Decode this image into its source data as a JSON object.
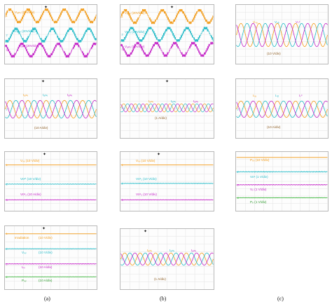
{
  "colors": {
    "orange": "#f29a16",
    "cyan": "#1fb9c6",
    "magenta": "#c21fc5",
    "green": "#3bb53b",
    "grid": "#e3e3e3"
  },
  "captions": {
    "a": "(a)",
    "b": "(b)",
    "c": "(c)"
  },
  "trigger_icon": "diamond-trigger-icon",
  "panels": {
    "a1": {
      "labels": [
        "Vₐᵢₙᵥ (20V/div)",
        "Vₐᵢₙᵥ (20V/div)",
        "Vₐᵢₙᵥ (20V/div)"
      ]
    },
    "b1": {
      "labels": [
        "Vₐᵢₙᵥ (20V/div)",
        "Vₐᵢₙᵥ (20V/div)",
        "Vₐᵢₙᵥ (20V/div)"
      ]
    },
    "c1": {
      "labels": [
        "Vₛₐ",
        "Vₛᵦ",
        "Vₛᶜ",
        "(10 V/div)"
      ]
    },
    "a2": {
      "labels": [
        "Iₐᵢₙᵥ",
        "Iₐᵢₙᵥ",
        "Iₐᵢₙᵥ",
        "(10 A/div)"
      ]
    },
    "b2": {
      "labels": [
        "Iₐᵢₙᵥ",
        "Iₐᵢₙᵥ",
        "Iₐᵢₙᵥ",
        "(1 A/div)"
      ]
    },
    "c2": {
      "labels": [
        "Iₛₐ",
        "Iₛᵦ",
        "Iₛᶜ",
        "(10 A/div)"
      ]
    },
    "a3": {
      "labels": [
        "Vₚᵥ (10 V/div)",
        "Vᴅᶜᵗ (10 V/div)",
        "Vᴅᶜ₂ (10 A/div)"
      ]
    },
    "b3": {
      "labels": [
        "Vₚᵥ (10 V/div)",
        "Vᴅᶜ₁ (10 V/div)",
        "Vᴅᶜ₂ (10 V/div)"
      ]
    },
    "c3": {
      "labels": [
        "Pₚᵥ (10 V/div)",
        "Vᴅᶜ (1 V/div)",
        "Vₚ (1 V/div)",
        "Pₚ (1 V/div)"
      ]
    },
    "a4": {
      "labels": [
        "Irradiation",
        "(10 V/div)",
        "Vₚᵥ",
        "(10 V/div)",
        "Iₚᵥ",
        "(10 A/div)",
        "Pₚᵥ",
        "(10 A/div)"
      ]
    },
    "b4": {
      "labels": [
        "Iₐᵢₙᵥ",
        "Iₐᵢₙᵥ",
        "Iₐᵢₙᵥ",
        "(1 A/div)"
      ]
    }
  }
}
